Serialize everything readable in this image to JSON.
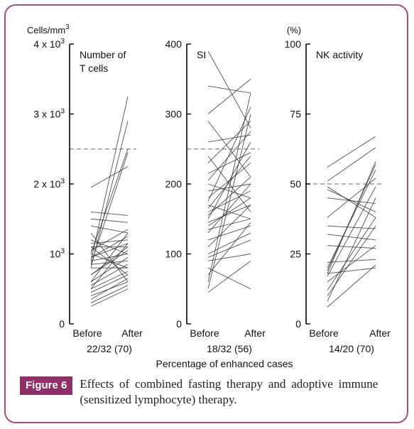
{
  "figure": {
    "label": "Figure 6",
    "caption": "Effects of combined fasting therapy and adoptive immune (sensitized lymphocyte) therapy.",
    "xlabel": "Percentage of enhanced cases"
  },
  "colors": {
    "frame": "#a0507a",
    "badge": "#8e2f66",
    "line": "#333333",
    "reference": "#888888"
  },
  "chart_data": [
    {
      "type": "line",
      "title_lines": [
        "Number of",
        "T cells"
      ],
      "unit": "Cells/mm³",
      "categories": [
        "Before",
        "After"
      ],
      "ylim": [
        0,
        4000
      ],
      "y_ticks": [
        {
          "value": 0,
          "label": "0"
        },
        {
          "value": 1000,
          "label": "10³",
          "base": "10",
          "exp": "3"
        },
        {
          "value": 2000,
          "label": "2 x 10³",
          "base": "2 x 10",
          "exp": "3"
        },
        {
          "value": 3000,
          "label": "3 x 10³",
          "base": "3 x 10",
          "exp": "3"
        },
        {
          "value": 4000,
          "label": "4 x 10³",
          "base": "4 x 10",
          "exp": "3"
        }
      ],
      "reference": 2500,
      "enhanced": "22/32 (70)",
      "series": [
        [
          900,
          3250
        ],
        [
          800,
          2900
        ],
        [
          1000,
          2500
        ],
        [
          850,
          2450
        ],
        [
          1950,
          2250
        ],
        [
          1600,
          1550
        ],
        [
          1500,
          1450
        ],
        [
          1400,
          1300
        ],
        [
          1150,
          1200
        ],
        [
          1100,
          1100
        ],
        [
          1050,
          1350
        ],
        [
          950,
          1250
        ],
        [
          900,
          1000
        ],
        [
          850,
          900
        ],
        [
          800,
          800
        ],
        [
          700,
          1050
        ],
        [
          600,
          950
        ],
        [
          550,
          850
        ],
        [
          500,
          750
        ],
        [
          450,
          700
        ],
        [
          400,
          600
        ],
        [
          350,
          650
        ],
        [
          300,
          550
        ],
        [
          250,
          500
        ],
        [
          1100,
          700
        ],
        [
          1300,
          600
        ],
        [
          1000,
          800
        ],
        [
          950,
          1150
        ],
        [
          700,
          1100
        ],
        [
          600,
          1300
        ],
        [
          1200,
          1000
        ],
        [
          500,
          1150
        ]
      ]
    },
    {
      "type": "line",
      "title_lines": [
        "SI"
      ],
      "unit": "",
      "categories": [
        "Before",
        "After"
      ],
      "ylim": [
        0,
        400
      ],
      "y_ticks": [
        {
          "value": 0,
          "label": "0"
        },
        {
          "value": 100,
          "label": "100"
        },
        {
          "value": 200,
          "label": "200"
        },
        {
          "value": 300,
          "label": "300"
        },
        {
          "value": 400,
          "label": "400"
        }
      ],
      "reference": 250,
      "enhanced": "18/32 (56)",
      "series": [
        [
          390,
          280
        ],
        [
          340,
          330
        ],
        [
          300,
          350
        ],
        [
          290,
          210
        ],
        [
          260,
          270
        ],
        [
          240,
          160
        ],
        [
          230,
          290
        ],
        [
          215,
          245
        ],
        [
          205,
          275
        ],
        [
          200,
          180
        ],
        [
          190,
          200
        ],
        [
          180,
          230
        ],
        [
          175,
          310
        ],
        [
          170,
          150
        ],
        [
          165,
          240
        ],
        [
          160,
          190
        ],
        [
          155,
          210
        ],
        [
          150,
          260
        ],
        [
          145,
          170
        ],
        [
          140,
          180
        ],
        [
          135,
          150
        ],
        [
          130,
          200
        ],
        [
          120,
          140
        ],
        [
          110,
          170
        ],
        [
          100,
          130
        ],
        [
          95,
          120
        ],
        [
          90,
          100
        ],
        [
          80,
          50
        ],
        [
          70,
          145
        ],
        [
          60,
          330
        ],
        [
          50,
          300
        ],
        [
          45,
          90
        ]
      ]
    },
    {
      "type": "line",
      "title_lines": [
        "NK activity"
      ],
      "unit": "(%)",
      "categories": [
        "Before",
        "After"
      ],
      "ylim": [
        0,
        100
      ],
      "y_ticks": [
        {
          "value": 0,
          "label": "0"
        },
        {
          "value": 25,
          "label": "25"
        },
        {
          "value": 50,
          "label": "50"
        },
        {
          "value": 75,
          "label": "75"
        },
        {
          "value": 100,
          "label": "100"
        }
      ],
      "reference": 50,
      "enhanced": "14/20 (70)",
      "series": [
        [
          56,
          67
        ],
        [
          51,
          63
        ],
        [
          49,
          38
        ],
        [
          48,
          40
        ],
        [
          45,
          43
        ],
        [
          38,
          52
        ],
        [
          35,
          34
        ],
        [
          32,
          30
        ],
        [
          28,
          27
        ],
        [
          22,
          23
        ],
        [
          20,
          55
        ],
        [
          19,
          57
        ],
        [
          18,
          58
        ],
        [
          18,
          20
        ],
        [
          17,
          49
        ],
        [
          15,
          28
        ],
        [
          12,
          38
        ],
        [
          10,
          35
        ],
        [
          8,
          45
        ],
        [
          6,
          21
        ]
      ]
    }
  ]
}
